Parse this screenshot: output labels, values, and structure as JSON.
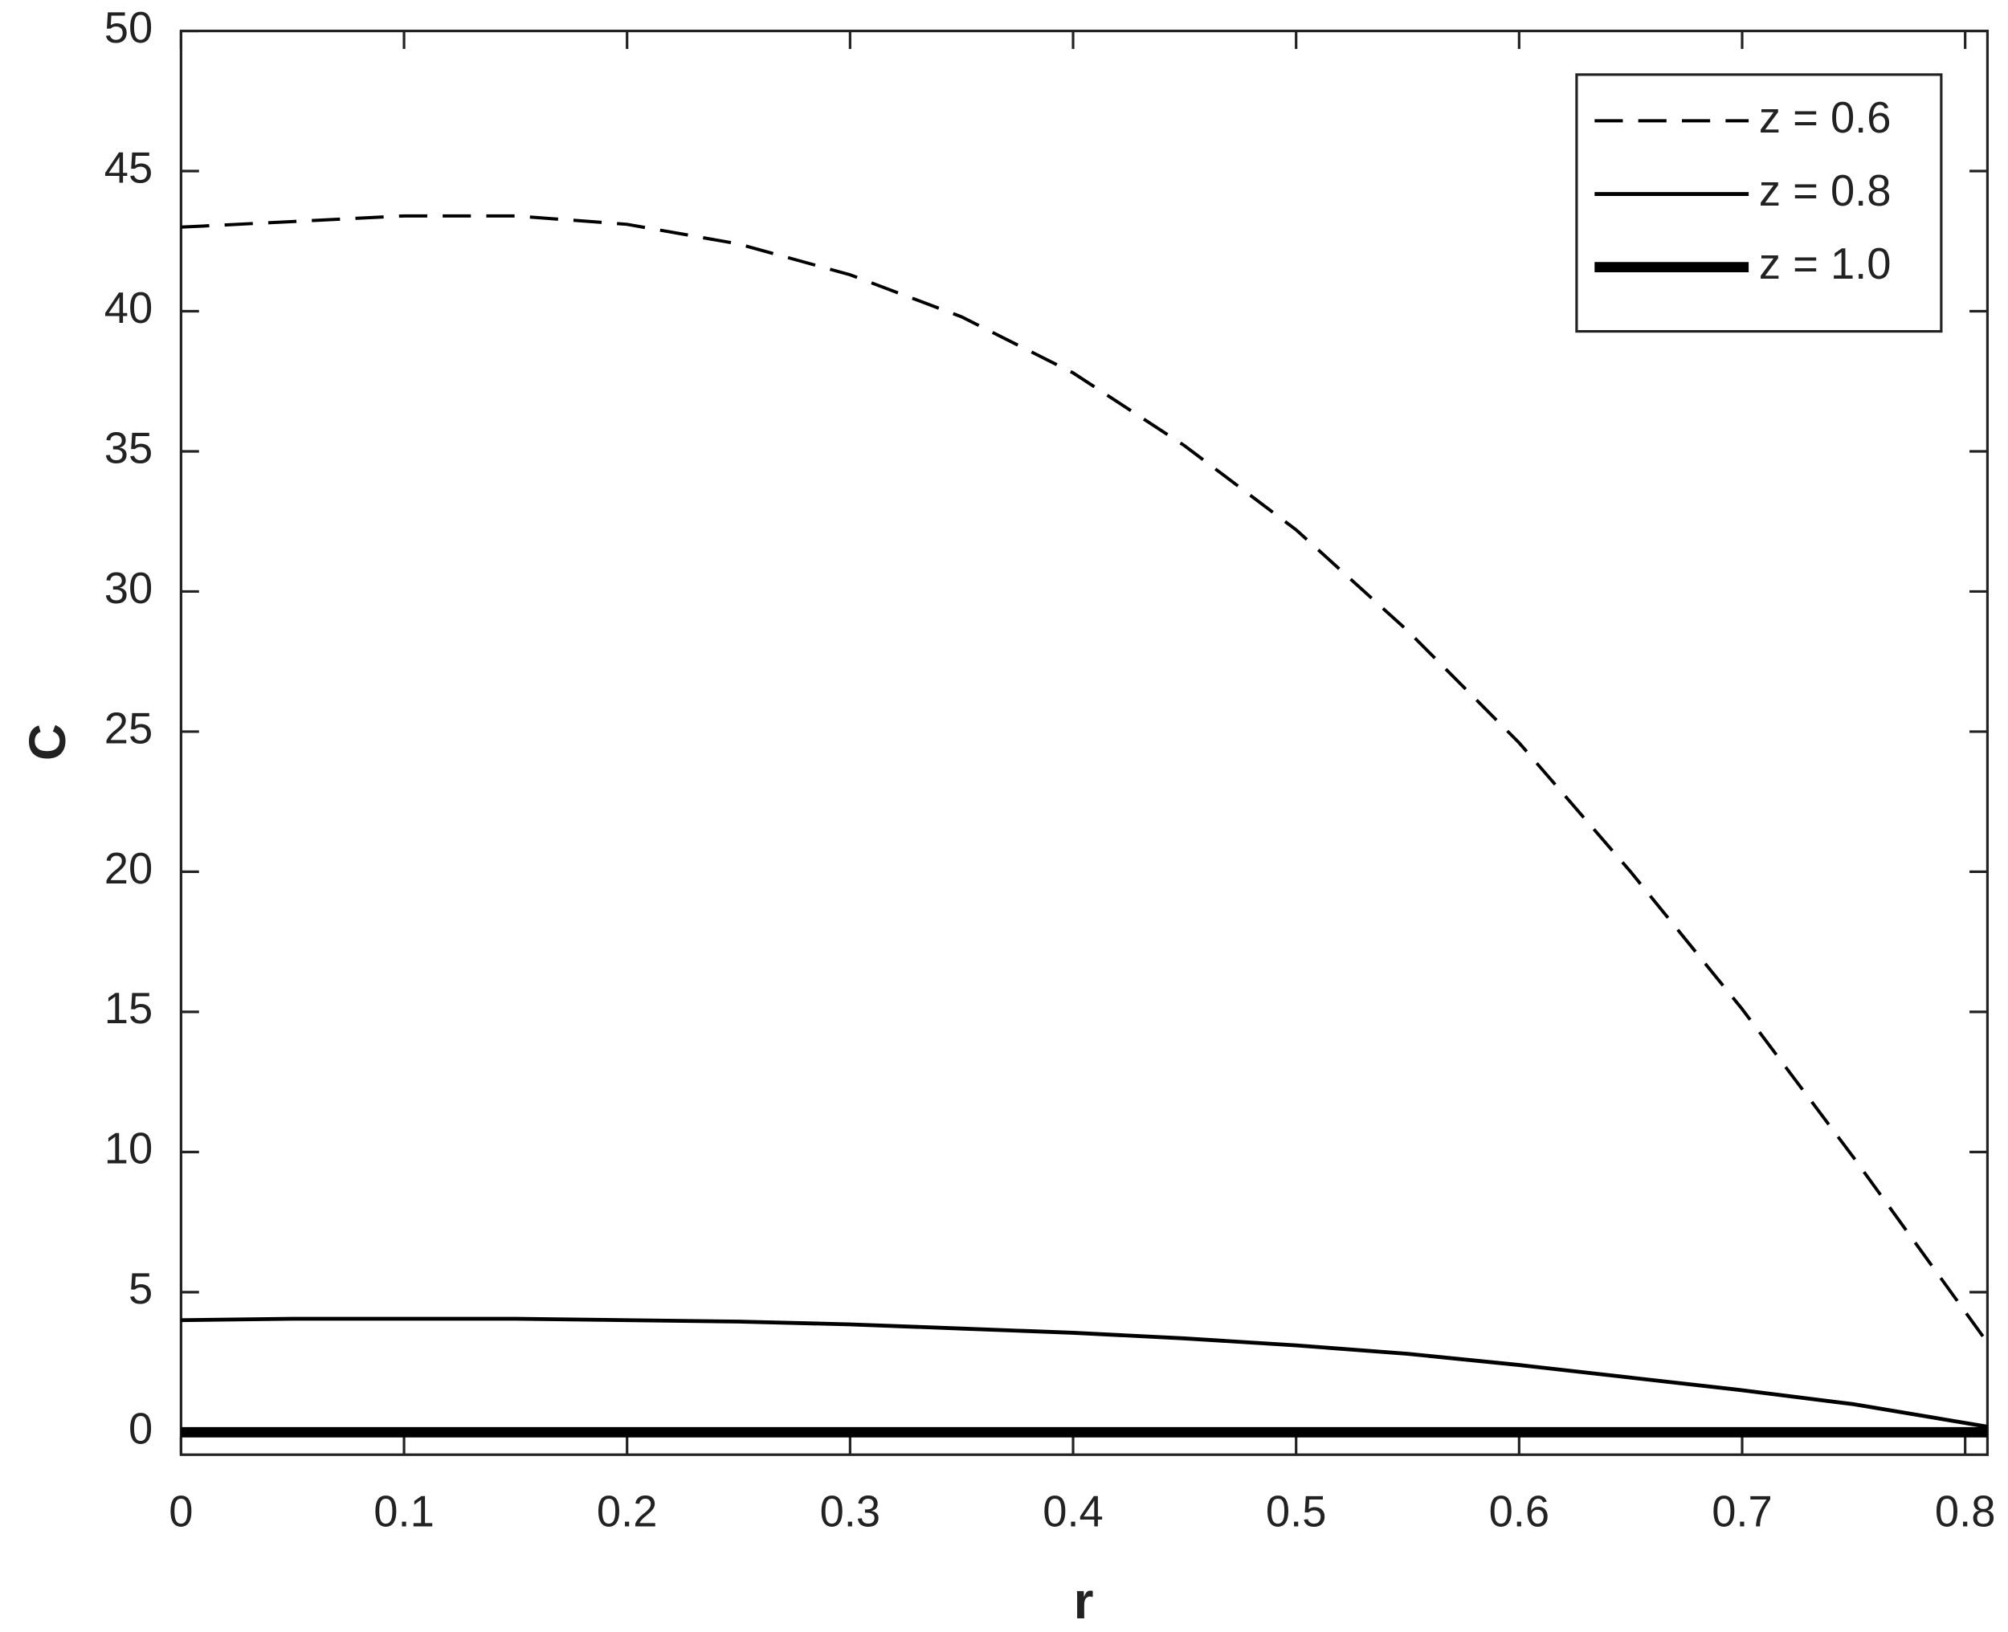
{
  "chart_data": {
    "type": "line",
    "x_label": "r",
    "y_label": "C",
    "x": [
      0,
      0.05,
      0.1,
      0.15,
      0.2,
      0.25,
      0.3,
      0.35,
      0.4,
      0.45,
      0.5,
      0.55,
      0.6,
      0.65,
      0.7,
      0.75,
      0.81
    ],
    "series": [
      {
        "name": "z = 0.6",
        "color": "#000000",
        "line_style": "dashed",
        "line_width": 2.5,
        "values": [
          43,
          43.2,
          43.4,
          43.4,
          43.1,
          42.4,
          41.3,
          39.8,
          37.8,
          35.2,
          32.2,
          28.6,
          24.6,
          20.0,
          15.1,
          9.8,
          3.2
        ]
      },
      {
        "name": "z = 0.8",
        "color": "#000000",
        "line_style": "solid",
        "line_width": 3,
        "values": [
          4.0,
          4.05,
          4.05,
          4.05,
          4.0,
          3.95,
          3.85,
          3.7,
          3.55,
          3.35,
          3.1,
          2.8,
          2.4,
          1.95,
          1.5,
          1.0,
          0.2
        ]
      },
      {
        "name": "z = 1.0",
        "color": "#000000",
        "line_style": "solid",
        "line_width": 8,
        "values": [
          0,
          0,
          0,
          0,
          0,
          0,
          0,
          0,
          0,
          0,
          0,
          0,
          0,
          0,
          0,
          0,
          0
        ]
      }
    ],
    "xlim": [
      0,
      0.81
    ],
    "ylim": [
      -0.8,
      50
    ],
    "xticks": [
      0,
      0.1,
      0.2,
      0.3,
      0.4,
      0.5,
      0.6,
      0.7,
      0.8
    ],
    "yticks": [
      0,
      5,
      10,
      15,
      20,
      25,
      30,
      35,
      40,
      45,
      50
    ],
    "grid": false,
    "legend_position": "upper-right"
  }
}
